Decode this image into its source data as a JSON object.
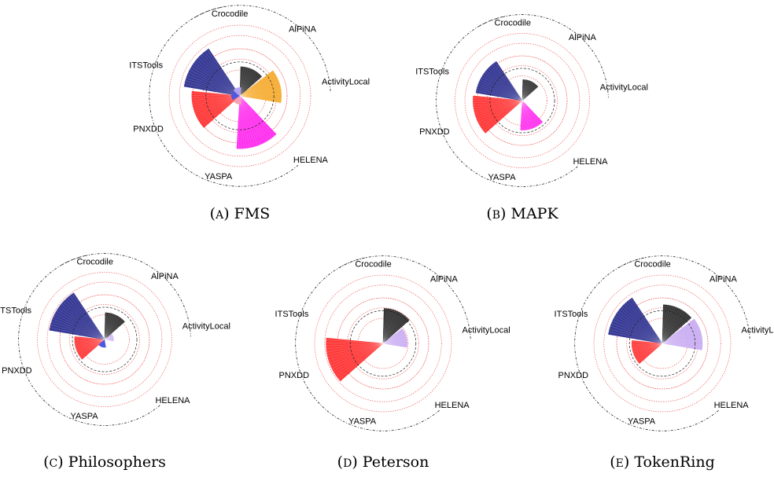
{
  "chart_data": [
    {
      "type": "polar-bar",
      "caption_letter": "A",
      "caption_name": "FMS",
      "tools": [
        {
          "name": "Crocodile",
          "value": 0
        },
        {
          "name": "AlPiNA",
          "value": 0.62
        },
        {
          "name": "ActivityLocal",
          "value": 0.88
        },
        {
          "name": "HELENA",
          "value": 1.12
        },
        {
          "name": "YASPA",
          "value": 0
        },
        {
          "name": "PNXDD",
          "value": 1.02
        },
        {
          "name": "ITSTools",
          "value": 1.2
        }
      ],
      "center_colors": [
        "#f4a3b5",
        "#4d57e0",
        "#b3a3f4"
      ]
    },
    {
      "type": "polar-bar",
      "caption_letter": "B",
      "caption_name": "MAPK",
      "tools": [
        {
          "name": "Crocodile",
          "value": 0
        },
        {
          "name": "AlPiNA",
          "value": 0.47
        },
        {
          "name": "ActivityLocal",
          "value": 0
        },
        {
          "name": "HELENA",
          "value": 0.66
        },
        {
          "name": "YASPA",
          "value": 0
        },
        {
          "name": "PNXDD",
          "value": 1.1
        },
        {
          "name": "ITSTools",
          "value": 1.05
        }
      ],
      "center_colors": []
    },
    {
      "type": "polar-bar",
      "caption_letter": "C",
      "caption_name": "Philosophers",
      "tools": [
        {
          "name": "Crocodile",
          "value": 0
        },
        {
          "name": "AlPiNA",
          "value": 0.6
        },
        {
          "name": "ActivityLocal",
          "value": 0.2
        },
        {
          "name": "HELENA",
          "value": 0
        },
        {
          "name": "YASPA",
          "value": 0
        },
        {
          "name": "PNXDD",
          "value": 0.67
        },
        {
          "name": "ITSTools",
          "value": 1.25
        }
      ],
      "center_colors": [
        "#4d57e0"
      ]
    },
    {
      "type": "polar-bar",
      "caption_letter": "D",
      "caption_name": "Peterson",
      "tools": [
        {
          "name": "Crocodile",
          "value": 0
        },
        {
          "name": "AlPiNA",
          "value": 0.77
        },
        {
          "name": "ActivityLocal",
          "value": 0.53
        },
        {
          "name": "HELENA",
          "value": 0
        },
        {
          "name": "YASPA",
          "value": 0
        },
        {
          "name": "PNXDD",
          "value": 1.25
        },
        {
          "name": "ITSTools",
          "value": 0
        }
      ],
      "center_colors": []
    },
    {
      "type": "polar-bar",
      "caption_letter": "E",
      "caption_name": "TokenRing",
      "tools": [
        {
          "name": "Crocodile",
          "value": 0
        },
        {
          "name": "AlPiNA",
          "value": 0.85
        },
        {
          "name": "ActivityLocal",
          "value": 0.88
        },
        {
          "name": "HELENA",
          "value": 0
        },
        {
          "name": "YASPA",
          "value": 0
        },
        {
          "name": "PNXDD",
          "value": 0.67
        },
        {
          "name": "ITSTools",
          "value": 1.2
        }
      ],
      "center_colors": []
    }
  ],
  "colors": {
    "Crocodile": "#000000",
    "AlPiNA": "#222222",
    "ActivityLocal": "#f5a623",
    "HELENA": "#ff22ee",
    "YASPA": "#888888",
    "PNXDD": "#ff2b2b",
    "ITSTools": "#272a8c",
    "ActivityLocal_light": "#c6a7f2",
    "grid_red": "#ee4444",
    "grid_dark": "#222222"
  },
  "caption_open": "(",
  "caption_close": ")"
}
